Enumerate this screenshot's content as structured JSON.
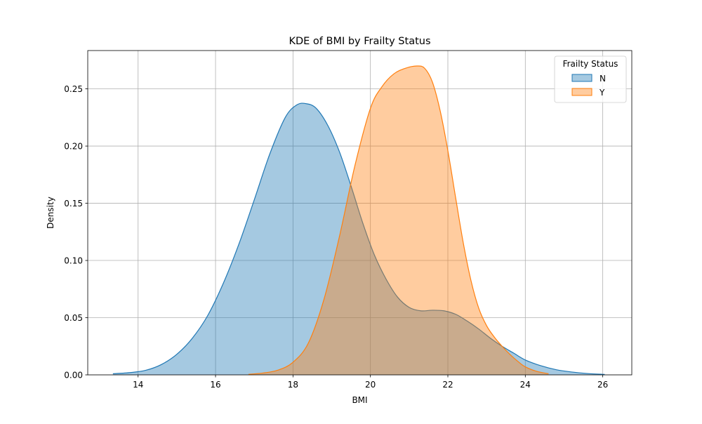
{
  "chart_data": {
    "type": "kde",
    "title": "KDE of BMI by Frailty Status",
    "xlabel": "BMI",
    "ylabel": "Density",
    "xlim": [
      12.7,
      26.75
    ],
    "ylim": [
      0,
      0.2835
    ],
    "xticks": [
      14,
      16,
      18,
      20,
      22,
      24,
      26
    ],
    "yticks": [
      0.0,
      0.05,
      0.1,
      0.15,
      0.2,
      0.25
    ],
    "grid": true,
    "legend": {
      "title": "Frailty Status",
      "position": "top-right"
    },
    "series": [
      {
        "name": "N",
        "color": "#1f77b4",
        "fill_color": "#1f77b4",
        "x": [
          13.35,
          13.8,
          14.2,
          14.6,
          15.0,
          15.4,
          15.8,
          16.2,
          16.6,
          17.0,
          17.4,
          17.8,
          18.1,
          18.35,
          18.6,
          18.9,
          19.2,
          19.5,
          19.8,
          20.1,
          20.4,
          20.7,
          21.0,
          21.3,
          21.6,
          21.9,
          22.2,
          22.5,
          22.8,
          23.1,
          23.4,
          23.7,
          24.0,
          24.4,
          24.8,
          25.2,
          25.6,
          26.05
        ],
        "y": [
          0.001,
          0.002,
          0.004,
          0.009,
          0.018,
          0.032,
          0.052,
          0.08,
          0.114,
          0.153,
          0.193,
          0.225,
          0.236,
          0.237,
          0.233,
          0.218,
          0.195,
          0.165,
          0.133,
          0.105,
          0.084,
          0.068,
          0.059,
          0.056,
          0.0565,
          0.056,
          0.053,
          0.047,
          0.04,
          0.032,
          0.025,
          0.019,
          0.013,
          0.008,
          0.0045,
          0.0025,
          0.0012,
          0.0004
        ]
      },
      {
        "name": "Y",
        "color": "#ff7f0e",
        "fill_color": "#ff7f0e",
        "x": [
          16.85,
          17.2,
          17.6,
          18.0,
          18.4,
          18.8,
          19.2,
          19.6,
          20.0,
          20.3,
          20.6,
          20.9,
          21.2,
          21.4,
          21.6,
          21.8,
          22.0,
          22.2,
          22.4,
          22.6,
          22.8,
          23.0,
          23.2,
          23.4,
          23.6,
          23.8,
          24.0,
          24.3,
          24.6
        ],
        "y": [
          0.0005,
          0.0015,
          0.004,
          0.011,
          0.028,
          0.066,
          0.121,
          0.183,
          0.233,
          0.252,
          0.263,
          0.268,
          0.27,
          0.268,
          0.256,
          0.231,
          0.196,
          0.155,
          0.115,
          0.082,
          0.058,
          0.043,
          0.033,
          0.025,
          0.018,
          0.012,
          0.007,
          0.003,
          0.001
        ]
      }
    ]
  }
}
